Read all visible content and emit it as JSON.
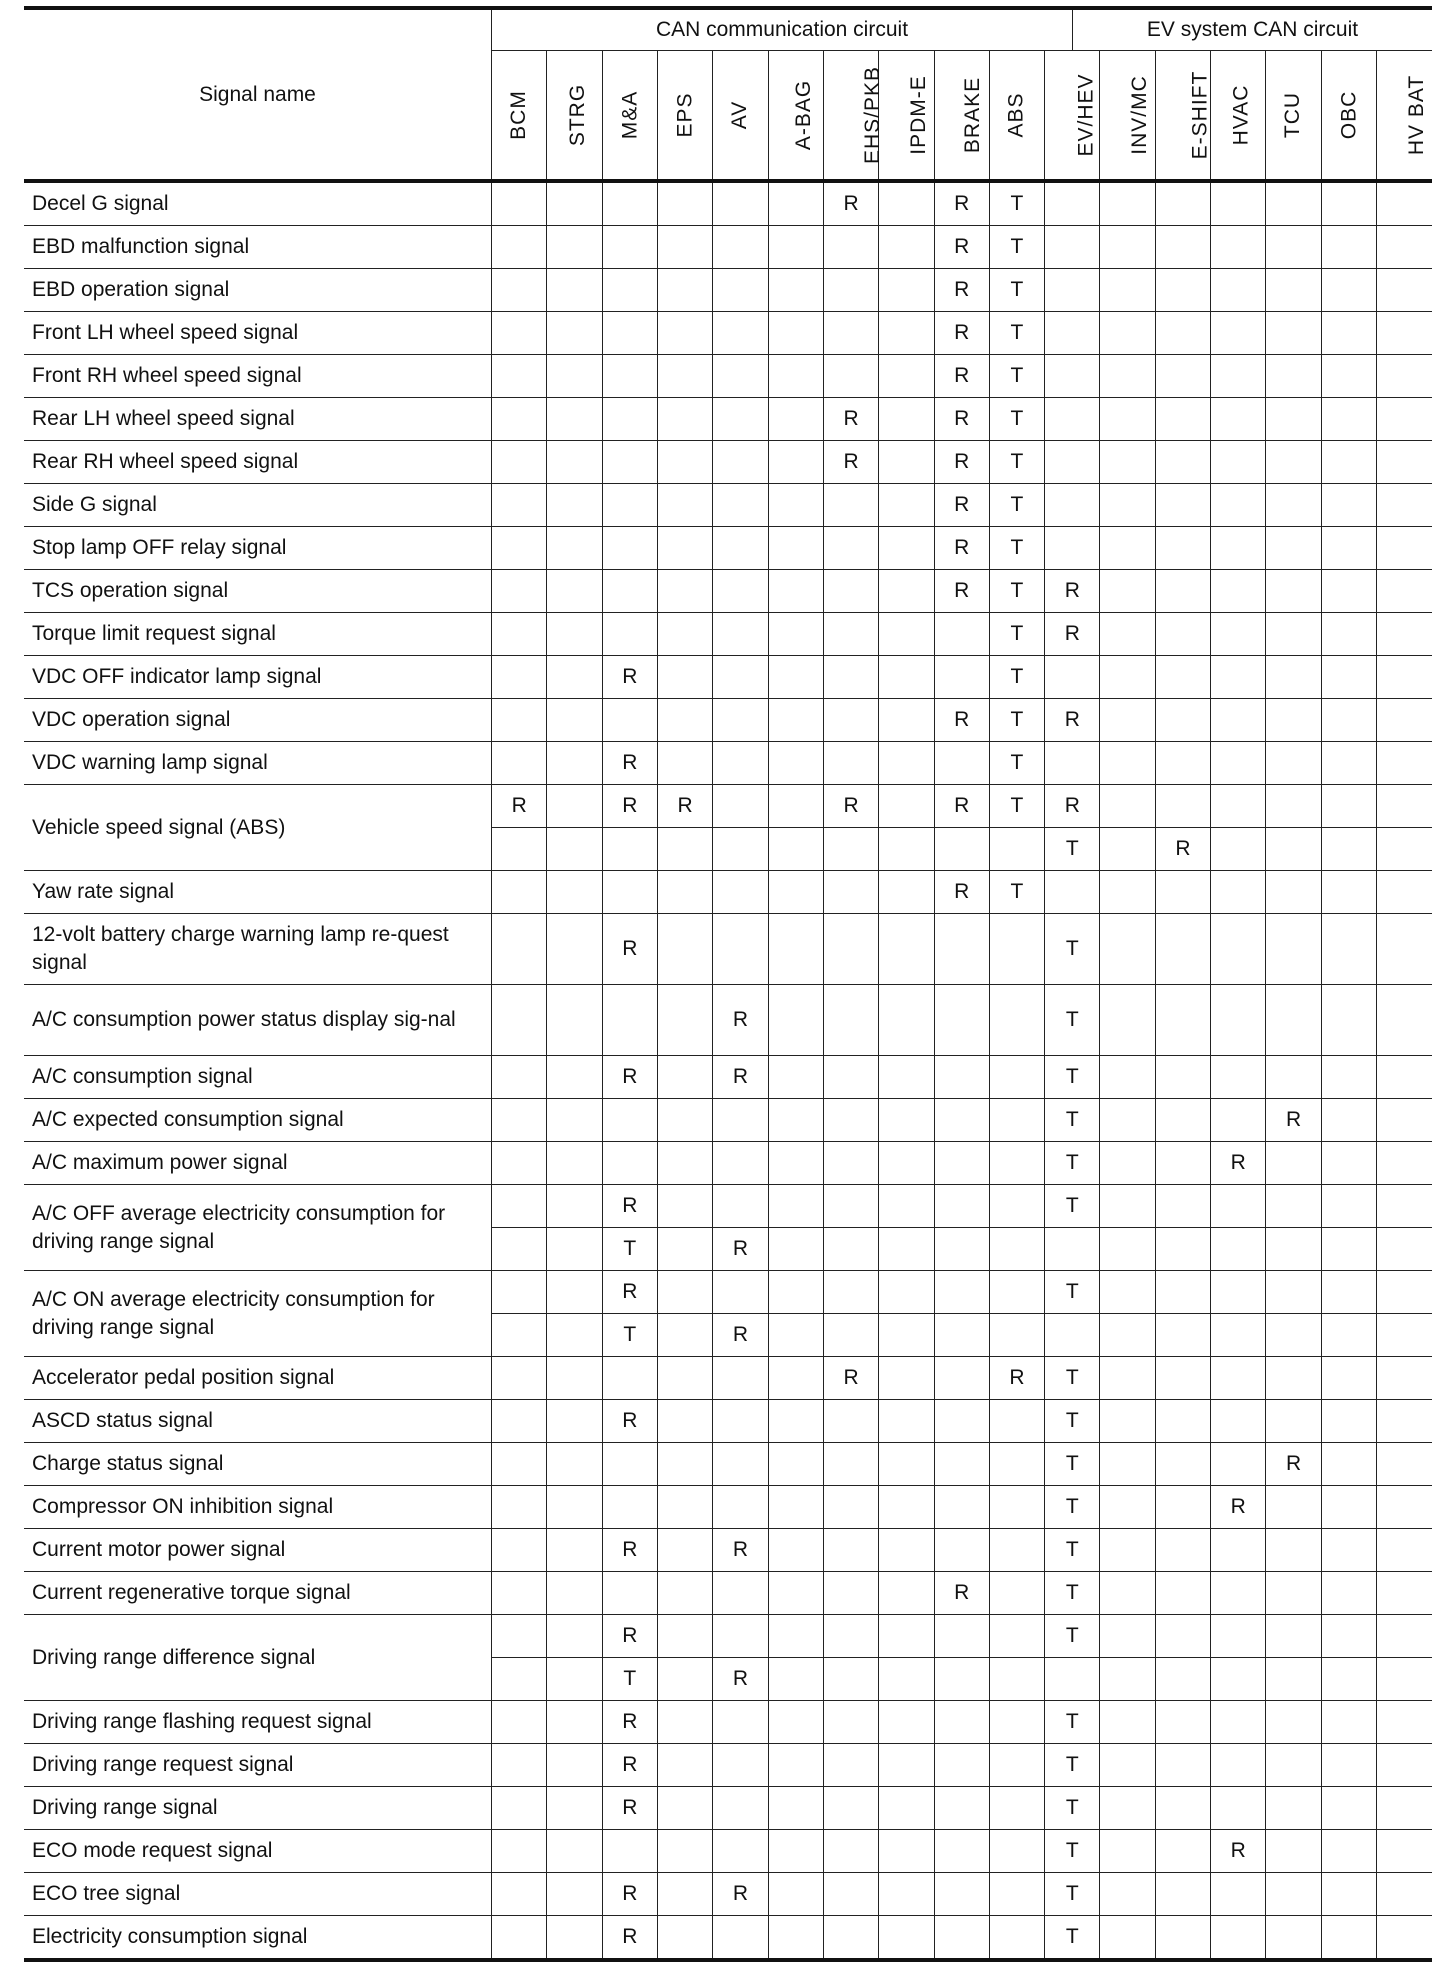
{
  "header": {
    "signal_name": "Signal name",
    "group_can": "CAN communication circuit",
    "group_ev": "EV system CAN circuit",
    "columns": [
      "BCM",
      "STRG",
      "M&A",
      "EPS",
      "AV",
      "A-BAG",
      "EHS/PKB",
      "IPDM-E",
      "BRAKE",
      "ABS",
      "EV/HEV",
      "INV/MC",
      "E-SHIFT",
      "HVAC",
      "TCU",
      "OBC",
      "HV BAT"
    ]
  },
  "signals": [
    {
      "name": "Decel G signal",
      "rows": [
        {
          "EHS/PKB": "R",
          "BRAKE": "R",
          "ABS": "T"
        }
      ]
    },
    {
      "name": "EBD malfunction signal",
      "rows": [
        {
          "BRAKE": "R",
          "ABS": "T"
        }
      ]
    },
    {
      "name": "EBD operation signal",
      "rows": [
        {
          "BRAKE": "R",
          "ABS": "T"
        }
      ]
    },
    {
      "name": "Front LH wheel speed signal",
      "rows": [
        {
          "BRAKE": "R",
          "ABS": "T"
        }
      ]
    },
    {
      "name": "Front RH wheel speed signal",
      "rows": [
        {
          "BRAKE": "R",
          "ABS": "T"
        }
      ]
    },
    {
      "name": "Rear LH wheel speed signal",
      "rows": [
        {
          "EHS/PKB": "R",
          "BRAKE": "R",
          "ABS": "T"
        }
      ]
    },
    {
      "name": "Rear RH wheel speed signal",
      "rows": [
        {
          "EHS/PKB": "R",
          "BRAKE": "R",
          "ABS": "T"
        }
      ]
    },
    {
      "name": "Side G signal",
      "rows": [
        {
          "BRAKE": "R",
          "ABS": "T"
        }
      ]
    },
    {
      "name": "Stop lamp OFF relay signal",
      "rows": [
        {
          "BRAKE": "R",
          "ABS": "T"
        }
      ]
    },
    {
      "name": "TCS operation signal",
      "rows": [
        {
          "BRAKE": "R",
          "ABS": "T",
          "EV/HEV": "R"
        }
      ]
    },
    {
      "name": "Torque limit request signal",
      "rows": [
        {
          "ABS": "T",
          "EV/HEV": "R"
        }
      ]
    },
    {
      "name": "VDC OFF indicator lamp signal",
      "rows": [
        {
          "M&A": "R",
          "ABS": "T"
        }
      ]
    },
    {
      "name": "VDC operation signal",
      "rows": [
        {
          "BRAKE": "R",
          "ABS": "T",
          "EV/HEV": "R"
        }
      ]
    },
    {
      "name": "VDC warning lamp signal",
      "rows": [
        {
          "M&A": "R",
          "ABS": "T"
        }
      ]
    },
    {
      "name": "Vehicle speed signal (ABS)",
      "rows": [
        {
          "BCM": "R",
          "M&A": "R",
          "EPS": "R",
          "EHS/PKB": "R",
          "BRAKE": "R",
          "ABS": "T",
          "EV/HEV": "R"
        },
        {
          "EV/HEV": "T",
          "E-SHIFT": "R"
        }
      ]
    },
    {
      "name": "Yaw rate signal",
      "rows": [
        {
          "BRAKE": "R",
          "ABS": "T"
        }
      ]
    },
    {
      "name": "12-volt battery charge warning lamp re-quest signal",
      "tall": true,
      "rows": [
        {
          "M&A": "R",
          "EV/HEV": "T"
        }
      ]
    },
    {
      "name": "A/C consumption power status display sig-nal",
      "tall": true,
      "rows": [
        {
          "AV": "R",
          "EV/HEV": "T"
        }
      ]
    },
    {
      "name": "A/C consumption signal",
      "rows": [
        {
          "M&A": "R",
          "AV": "R",
          "EV/HEV": "T"
        }
      ]
    },
    {
      "name": "A/C expected consumption signal",
      "rows": [
        {
          "EV/HEV": "T",
          "TCU": "R"
        }
      ]
    },
    {
      "name": "A/C maximum power signal",
      "rows": [
        {
          "EV/HEV": "T",
          "HVAC": "R"
        }
      ]
    },
    {
      "name": "A/C OFF average electricity consumption for driving range signal",
      "rows": [
        {
          "M&A": "R",
          "EV/HEV": "T"
        },
        {
          "M&A": "T",
          "AV": "R"
        }
      ]
    },
    {
      "name": "A/C ON average electricity consumption for driving range signal",
      "rows": [
        {
          "M&A": "R",
          "EV/HEV": "T"
        },
        {
          "M&A": "T",
          "AV": "R"
        }
      ]
    },
    {
      "name": "Accelerator pedal position signal",
      "rows": [
        {
          "EHS/PKB": "R",
          "ABS": "R",
          "EV/HEV": "T"
        }
      ]
    },
    {
      "name": "ASCD status signal",
      "rows": [
        {
          "M&A": "R",
          "EV/HEV": "T"
        }
      ]
    },
    {
      "name": "Charge status signal",
      "rows": [
        {
          "EV/HEV": "T",
          "TCU": "R"
        }
      ]
    },
    {
      "name": "Compressor ON inhibition signal",
      "rows": [
        {
          "EV/HEV": "T",
          "HVAC": "R"
        }
      ]
    },
    {
      "name": "Current motor power signal",
      "rows": [
        {
          "M&A": "R",
          "AV": "R",
          "EV/HEV": "T"
        }
      ]
    },
    {
      "name": "Current regenerative torque signal",
      "rows": [
        {
          "BRAKE": "R",
          "EV/HEV": "T"
        }
      ]
    },
    {
      "name": "Driving range difference signal",
      "rows": [
        {
          "M&A": "R",
          "EV/HEV": "T"
        },
        {
          "M&A": "T",
          "AV": "R"
        }
      ]
    },
    {
      "name": "Driving range flashing request signal",
      "rows": [
        {
          "M&A": "R",
          "EV/HEV": "T"
        }
      ]
    },
    {
      "name": "Driving range request signal",
      "rows": [
        {
          "M&A": "R",
          "EV/HEV": "T"
        }
      ]
    },
    {
      "name": "Driving range signal",
      "rows": [
        {
          "M&A": "R",
          "EV/HEV": "T"
        }
      ]
    },
    {
      "name": "ECO mode request signal",
      "rows": [
        {
          "EV/HEV": "T",
          "HVAC": "R"
        }
      ]
    },
    {
      "name": "ECO tree signal",
      "rows": [
        {
          "M&A": "R",
          "AV": "R",
          "EV/HEV": "T"
        }
      ]
    },
    {
      "name": "Electricity consumption signal",
      "rows": [
        {
          "M&A": "R",
          "EV/HEV": "T"
        }
      ]
    }
  ]
}
